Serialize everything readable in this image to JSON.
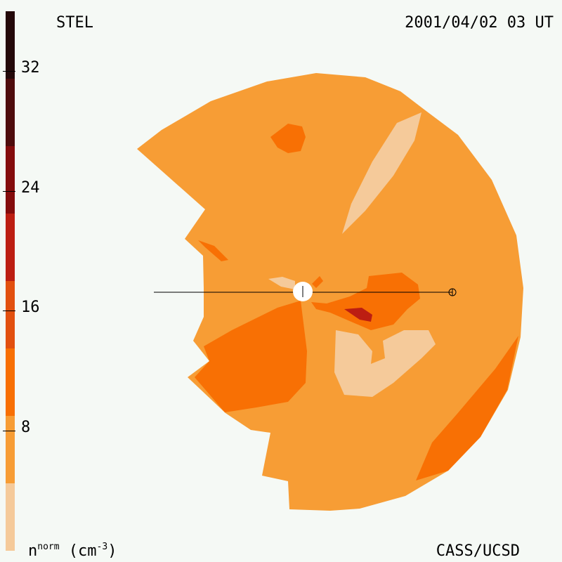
{
  "header": {
    "station": "STEL",
    "datetime": "2001/04/02 03 UT"
  },
  "footer": {
    "credit": "CASS/UCSD",
    "unit_base": "n",
    "unit_sup": "norm",
    "unit_open": " (cm",
    "unit_exp": "-3",
    "unit_close": ")"
  },
  "colorbar": {
    "ticks": [
      "32",
      "24",
      "16",
      "8"
    ],
    "segments": [
      "#24090a",
      "#4e0c0c",
      "#840c0c",
      "#bc1e12",
      "#e2500f",
      "#f87004",
      "#f79d35",
      "#f5ca9a"
    ],
    "range": [
      0,
      36
    ]
  },
  "map": {
    "background_fill": "#f79d35",
    "markers": [
      "sun-marker",
      "earth-marker"
    ]
  }
}
